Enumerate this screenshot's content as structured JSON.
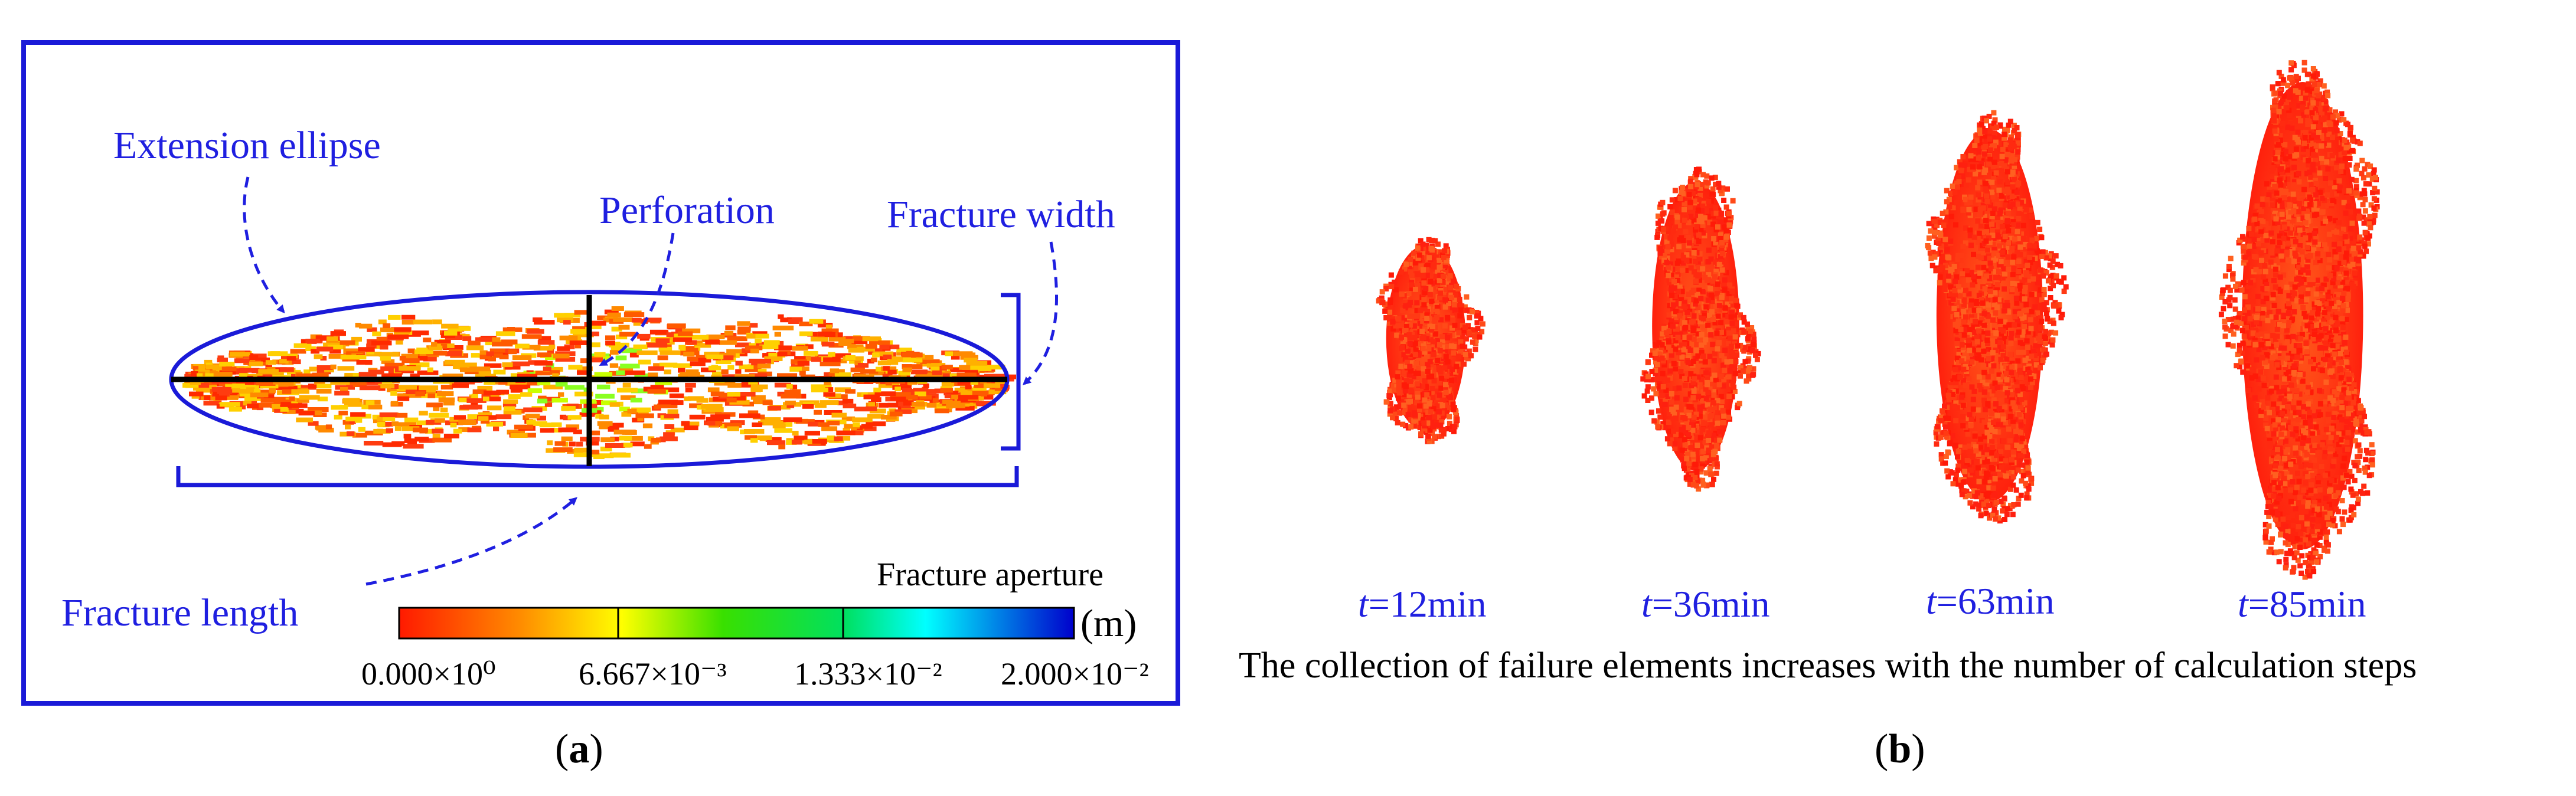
{
  "colors": {
    "frame": "#1a1ad8",
    "annotation": "#1f1fe0",
    "axis": "#000000",
    "scale_low": "#ff0000",
    "scale_mid_low": "#ffff00",
    "scale_mid": "#00e000",
    "scale_mid_high": "#00ffff",
    "scale_high": "#0000cc"
  },
  "panel_a": {
    "label_extension": "Extension ellipse",
    "label_perforation": "Perforation",
    "label_fracture_width": "Fracture width",
    "label_fracture_length": "Fracture length",
    "colorbar": {
      "title": "Fracture aperture",
      "unit": "(m)",
      "tick_labels": [
        "0.000×10⁰",
        "6.667×10⁻³",
        "1.333×10⁻²",
        "2.000×10⁻²"
      ]
    },
    "caption_open": "(",
    "caption_letter": "a",
    "caption_close": ")"
  },
  "panel_b": {
    "times": [
      {
        "var": "t",
        "value": "=12min"
      },
      {
        "var": "t",
        "value": "=36min"
      },
      {
        "var": "t",
        "value": "=63min"
      },
      {
        "var": "t",
        "value": "=85min"
      }
    ],
    "description": "The collection of failure elements increases with the number of calculation steps",
    "caption_open": "(",
    "caption_letter": "b",
    "caption_close": ")"
  }
}
